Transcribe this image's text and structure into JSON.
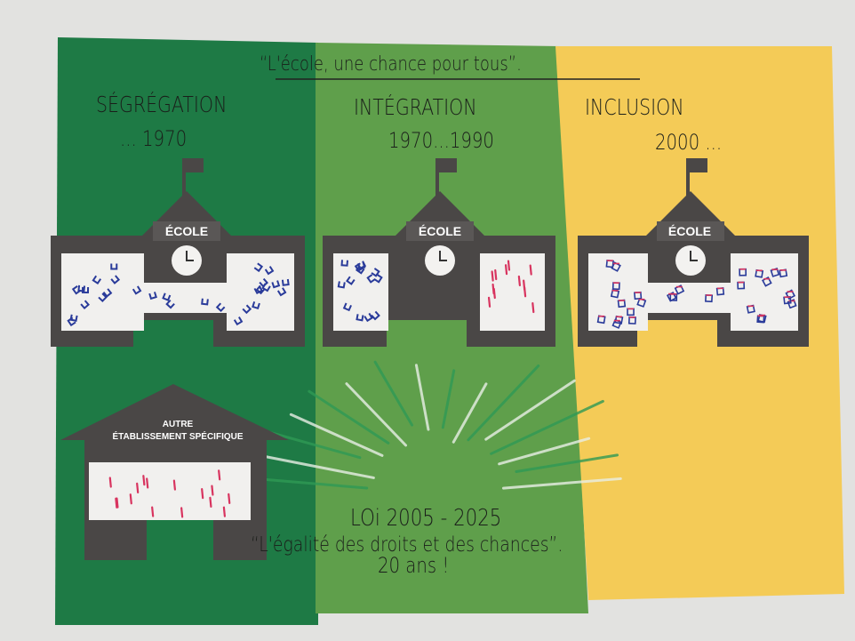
{
  "poster": {
    "title": "“L'école, une chance pour tous”.",
    "columns": [
      {
        "era": "SÉGRÉGATION",
        "period": "... 1970",
        "color": "#1e7a45"
      },
      {
        "era": "INTÉGRATION",
        "period": "1970...1990",
        "color": "#5f9f4b"
      },
      {
        "era": "INCLUSION",
        "period": "2000 ...",
        "color": "#f4cb57"
      }
    ],
    "school_label": "ÉCOLE",
    "house_label_line1": "AUTRE",
    "house_label_line2": "ÉTABLISSEMENT SPÉCIFIQUE",
    "law_line": "LOi 2005 - 2025",
    "law_quote": "“L'égalité des droits et des chances”.",
    "anniversary": "20 ans !",
    "colors": {
      "building": "#4a4746",
      "blue_marks": "#2a3b9a",
      "red_marks": "#d8345f"
    }
  }
}
